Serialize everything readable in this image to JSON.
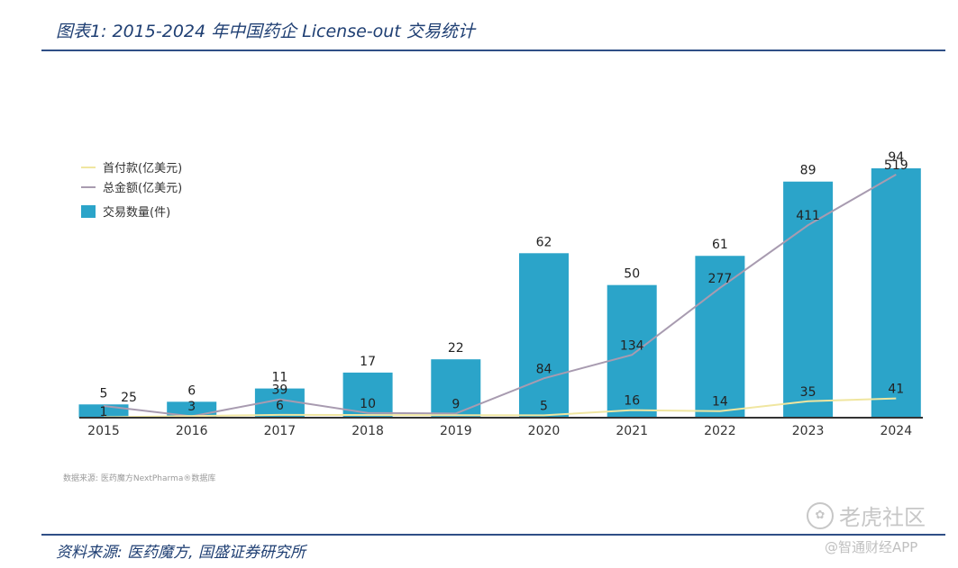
{
  "title": "图表1: 2015-2024 年中国药企 License-out 交易统计",
  "source_small": "数据来源: 医药魔方NextPharma®数据库",
  "source": "资料来源: 医药魔方, 国盛证券研究所",
  "watermarks": [
    "老虎社区",
    "@智通财经APP"
  ],
  "chart_data": {
    "type": "bar",
    "categories": [
      "2015",
      "2016",
      "2017",
      "2018",
      "2019",
      "2020",
      "2021",
      "2022",
      "2023",
      "2024"
    ],
    "series": [
      {
        "name": "交易数量(件)",
        "type": "bar",
        "color": "#2ba4c9",
        "values": [
          5,
          6,
          11,
          17,
          22,
          62,
          50,
          61,
          89,
          94
        ]
      },
      {
        "name": "总金额(亿美元)",
        "type": "line",
        "color": "#a89bb0",
        "values": [
          25,
          3,
          39,
          10,
          9,
          84,
          134,
          277,
          411,
          519
        ]
      },
      {
        "name": "首付款(亿美元)",
        "type": "line",
        "color": "#f0e6a0",
        "values": [
          1,
          null,
          6,
          null,
          null,
          5,
          16,
          14,
          35,
          41
        ]
      }
    ],
    "legend": [
      "首付款(亿美元)",
      "总金额(亿美元)",
      "交易数量(件)"
    ],
    "legend_position": "top-left",
    "bar_ylim": [
      0,
      94
    ],
    "line_ylim": [
      0,
      540
    ],
    "grid": false
  }
}
